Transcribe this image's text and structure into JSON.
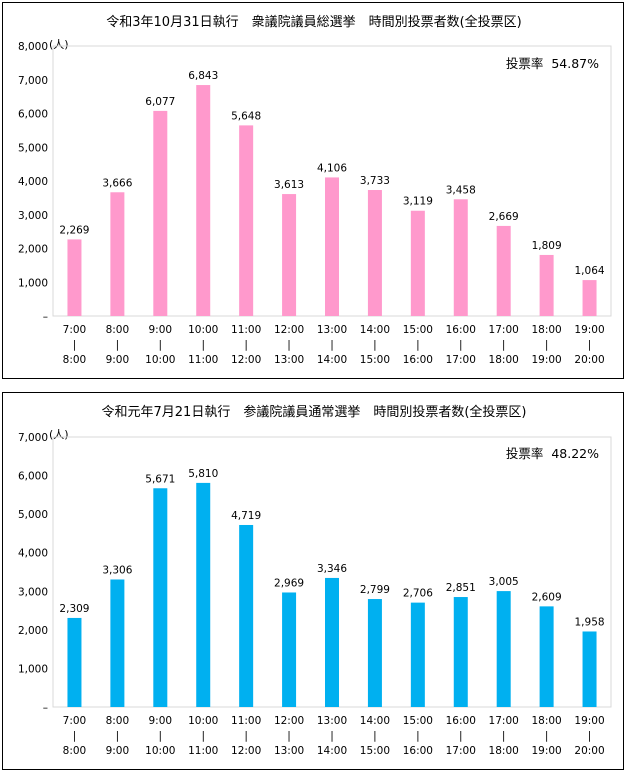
{
  "chart_data": [
    {
      "type": "bar",
      "title": "令和3年10月31日執行　衆議院議員総選挙　時間別投票者数(全投票区)",
      "unit": "(人)",
      "turnout_label": "投票率",
      "turnout_value": "54.87%",
      "color": "#ff99cc",
      "ylim": [
        0,
        8000
      ],
      "yticks": [
        "–",
        "1,000",
        "2,000",
        "3,000",
        "4,000",
        "5,000",
        "6,000",
        "7,000",
        "8,000"
      ],
      "categories_start": [
        "7:00",
        "8:00",
        "9:00",
        "10:00",
        "11:00",
        "12:00",
        "13:00",
        "14:00",
        "15:00",
        "16:00",
        "17:00",
        "18:00",
        "19:00"
      ],
      "categories_sep": [
        "|",
        "|",
        "|",
        "|",
        "|",
        "|",
        "|",
        "|",
        "|",
        "|",
        "|",
        "|",
        "|"
      ],
      "categories_end": [
        "8:00",
        "9:00",
        "10:00",
        "11:00",
        "12:00",
        "13:00",
        "14:00",
        "15:00",
        "16:00",
        "17:00",
        "18:00",
        "19:00",
        "20:00"
      ],
      "values": [
        2269,
        3666,
        6077,
        6843,
        5648,
        3613,
        4106,
        3733,
        3119,
        3458,
        2669,
        1809,
        1064
      ],
      "value_labels": [
        "2,269",
        "3,666",
        "6,077",
        "6,843",
        "5,648",
        "3,613",
        "4,106",
        "3,733",
        "3,119",
        "3,458",
        "2,669",
        "1,809",
        "1,064"
      ]
    },
    {
      "type": "bar",
      "title": "令和元年7月21日執行　参議院議員通常選挙　時間別投票者数(全投票区)",
      "unit": "(人)",
      "turnout_label": "投票率",
      "turnout_value": "48.22%",
      "color": "#00b0f0",
      "ylim": [
        0,
        7000
      ],
      "yticks": [
        "–",
        "1,000",
        "2,000",
        "3,000",
        "4,000",
        "5,000",
        "6,000",
        "7,000"
      ],
      "categories_start": [
        "7:00",
        "8:00",
        "9:00",
        "10:00",
        "11:00",
        "12:00",
        "13:00",
        "14:00",
        "15:00",
        "16:00",
        "17:00",
        "18:00",
        "19:00"
      ],
      "categories_sep": [
        "|",
        "|",
        "|",
        "|",
        "|",
        "|",
        "|",
        "|",
        "|",
        "|",
        "|",
        "|",
        "|"
      ],
      "categories_end": [
        "8:00",
        "9:00",
        "10:00",
        "11:00",
        "12:00",
        "13:00",
        "14:00",
        "15:00",
        "16:00",
        "17:00",
        "18:00",
        "19:00",
        "20:00"
      ],
      "values": [
        2309,
        3306,
        5671,
        5810,
        4719,
        2969,
        3346,
        2799,
        2706,
        2851,
        3005,
        2609,
        1958
      ],
      "value_labels": [
        "2,309",
        "3,306",
        "5,671",
        "5,810",
        "4,719",
        "2,969",
        "3,346",
        "2,799",
        "2,706",
        "2,851",
        "3,005",
        "2,609",
        "1,958"
      ]
    }
  ]
}
